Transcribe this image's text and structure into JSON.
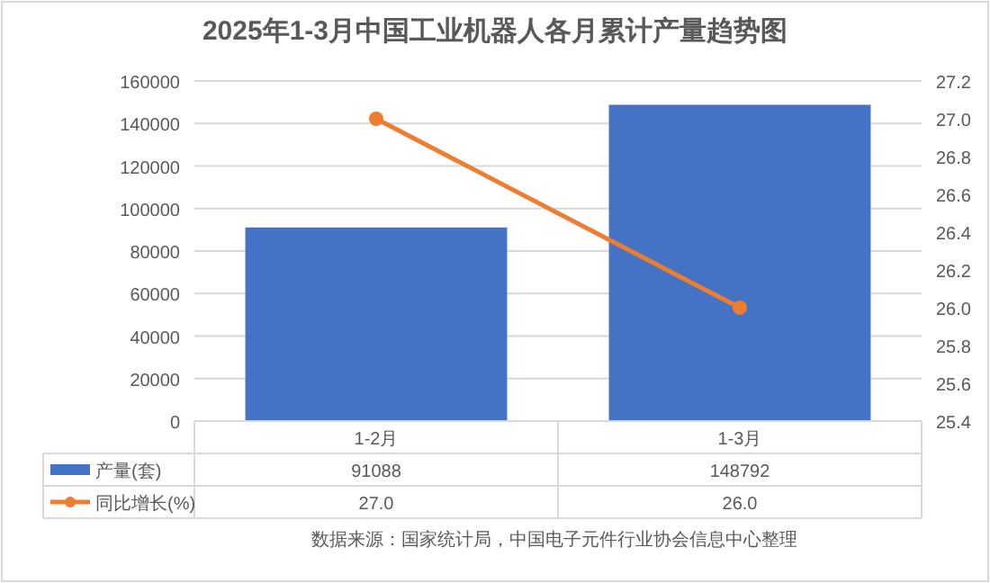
{
  "chart_data": {
    "type": "bar",
    "title": "2025年1-3月中国工业机器人各月累计产量趋势图",
    "categories": [
      "1-2月",
      "1-3月"
    ],
    "series": [
      {
        "name": "产量(套)",
        "color": "#4472c4",
        "values": [
          91088,
          148792
        ],
        "value_labels": [
          "91088",
          "148792"
        ]
      },
      {
        "name": "同比增长(%)",
        "type": "line",
        "axis": "y2",
        "color": "#ed7d31",
        "marker": "circle",
        "values": [
          27.0,
          26.0
        ],
        "value_labels": [
          "27.0",
          "26.0"
        ]
      }
    ],
    "ylim": [
      0,
      160000
    ],
    "yticks": [
      0,
      20000,
      40000,
      60000,
      80000,
      100000,
      120000,
      140000,
      160000
    ],
    "y2lim": [
      25.4,
      27.2
    ],
    "y2ticks": [
      {
        "value": 25.4,
        "label": "25.4"
      },
      {
        "value": 25.6,
        "label": "25.6"
      },
      {
        "value": 25.8,
        "label": "25.8"
      },
      {
        "value": 26.0,
        "label": "26.0"
      },
      {
        "value": 26.2,
        "label": "26.2"
      },
      {
        "value": 26.4,
        "label": "26.4"
      },
      {
        "value": 26.6,
        "label": "26.6"
      },
      {
        "value": 26.8,
        "label": "26.8"
      },
      {
        "value": 27.0,
        "label": "27.0"
      },
      {
        "value": 27.2,
        "label": "27.2"
      }
    ],
    "grid": "y",
    "legend": "bottom",
    "annotations": [
      "数据来源：国家统计局，中国电子元件行业协会信息中心整理"
    ]
  }
}
